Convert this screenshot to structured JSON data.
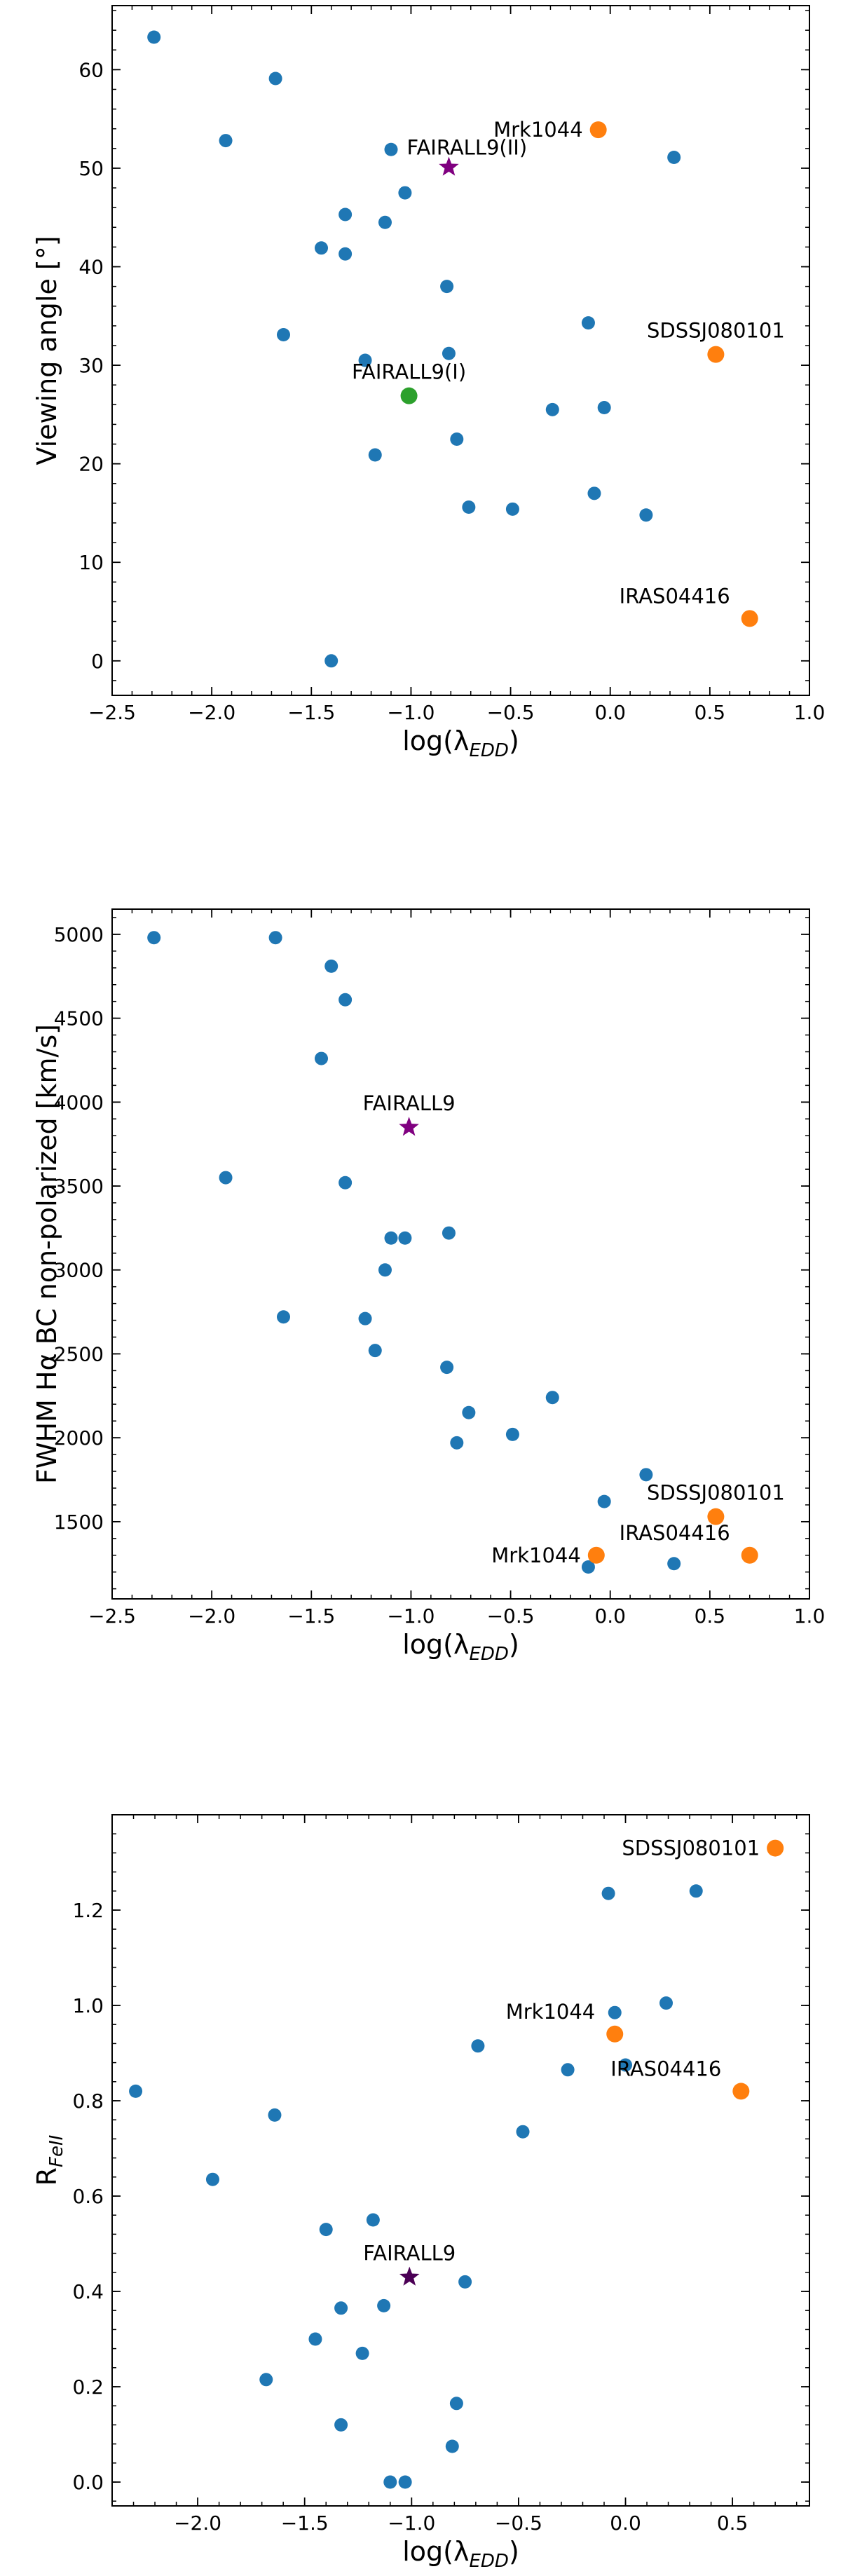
{
  "chart_data": [
    {
      "type": "scatter",
      "xlabel": "log(λ",
      "xlabel_sub": "EDD",
      "xlabel_close": ")",
      "ylabel": "Viewing angle [°]",
      "xlim": [
        -2.5,
        1.0
      ],
      "ylim": [
        -3.5,
        66.5
      ],
      "xticks": [
        -2.5,
        -2.0,
        -1.5,
        -1.0,
        -0.5,
        0.0,
        0.5,
        1.0
      ],
      "xtick_labels": [
        "−2.5",
        "−2.0",
        "−1.5",
        "−1.0",
        "−0.5",
        "0.0",
        "0.5",
        "1.0"
      ],
      "yticks": [
        0,
        10,
        20,
        30,
        40,
        50,
        60
      ],
      "ytick_labels": [
        "0",
        "10",
        "20",
        "30",
        "40",
        "50",
        "60"
      ],
      "minor_ticks": true,
      "grid": false,
      "sample": {
        "color": "#1f77b4",
        "points": [
          [
            -2.29,
            63.3
          ],
          [
            -1.93,
            52.8
          ],
          [
            -1.68,
            59.1
          ],
          [
            -1.64,
            33.1
          ],
          [
            -1.45,
            41.9
          ],
          [
            -1.4,
            0.0
          ],
          [
            -1.33,
            45.3
          ],
          [
            -1.33,
            41.3
          ],
          [
            -1.23,
            30.5
          ],
          [
            -1.18,
            20.9
          ],
          [
            -1.13,
            44.5
          ],
          [
            -1.1,
            51.9
          ],
          [
            -1.03,
            47.5
          ],
          [
            -0.82,
            38.0
          ],
          [
            -0.81,
            31.2
          ],
          [
            -0.77,
            22.5
          ],
          [
            -0.71,
            15.6
          ],
          [
            -0.49,
            15.4
          ],
          [
            -0.29,
            25.5
          ],
          [
            -0.11,
            34.3
          ],
          [
            -0.08,
            17.0
          ],
          [
            -0.03,
            25.7
          ],
          [
            0.18,
            14.8
          ],
          [
            0.32,
            51.1
          ]
        ]
      },
      "highlights": [
        {
          "label": "Mrk1044",
          "x": -0.06,
          "y": 53.9,
          "color": "#ff7f0e",
          "marker": "circle",
          "label_pos": "left"
        },
        {
          "label": "SDSSJ080101",
          "x": 0.53,
          "y": 31.1,
          "color": "#ff7f0e",
          "marker": "circle",
          "label_pos": "above"
        },
        {
          "label": "IRAS04416",
          "x": 0.7,
          "y": 4.3,
          "color": "#ff7f0e",
          "marker": "circle",
          "label_pos": "above-left"
        },
        {
          "label": "FAIRALL9(II)",
          "x": -0.81,
          "y": 50.1,
          "color": "#800080",
          "marker": "star",
          "label_pos": "above-right"
        },
        {
          "label": "FAIRALL9(I)",
          "x": -1.01,
          "y": 26.9,
          "color": "#2ca02c",
          "marker": "circle",
          "label_pos": "above"
        }
      ]
    },
    {
      "type": "scatter",
      "xlabel": "log(λ",
      "xlabel_sub": "EDD",
      "xlabel_close": ")",
      "ylabel": "FWHM Hα BC non-polarized [km/s]",
      "xlim": [
        -2.5,
        1.0
      ],
      "ylim": [
        1040,
        5150
      ],
      "xticks": [
        -2.5,
        -2.0,
        -1.5,
        -1.0,
        -0.5,
        0.0,
        0.5,
        1.0
      ],
      "xtick_labels": [
        "−2.5",
        "−2.0",
        "−1.5",
        "−1.0",
        "−0.5",
        "0.0",
        "0.5",
        "1.0"
      ],
      "yticks": [
        1500,
        2000,
        2500,
        3000,
        3500,
        4000,
        4500,
        5000
      ],
      "ytick_labels": [
        "1500",
        "2000",
        "2500",
        "3000",
        "3500",
        "4000",
        "4500",
        "5000"
      ],
      "minor_ticks": true,
      "grid": false,
      "sample": {
        "color": "#1f77b4",
        "points": [
          [
            -2.29,
            4980
          ],
          [
            -1.93,
            3550
          ],
          [
            -1.68,
            4980
          ],
          [
            -1.64,
            2720
          ],
          [
            -1.45,
            4260
          ],
          [
            -1.4,
            4810
          ],
          [
            -1.33,
            4610
          ],
          [
            -1.33,
            3520
          ],
          [
            -1.23,
            2710
          ],
          [
            -1.18,
            2520
          ],
          [
            -1.13,
            3000
          ],
          [
            -1.1,
            3190
          ],
          [
            -1.03,
            3190
          ],
          [
            -0.82,
            2420
          ],
          [
            -0.81,
            3220
          ],
          [
            -0.77,
            1970
          ],
          [
            -0.71,
            2150
          ],
          [
            -0.49,
            2020
          ],
          [
            -0.29,
            2240
          ],
          [
            -0.11,
            1230
          ],
          [
            -0.03,
            1620
          ],
          [
            0.18,
            1780
          ],
          [
            0.32,
            1250
          ]
        ]
      },
      "highlights": [
        {
          "label": "SDSSJ080101",
          "x": 0.53,
          "y": 1530,
          "color": "#ff7f0e",
          "marker": "circle",
          "label_pos": "above"
        },
        {
          "label": "Mrk1044",
          "x": -0.07,
          "y": 1300,
          "color": "#ff7f0e",
          "marker": "circle",
          "label_pos": "left"
        },
        {
          "label": "IRAS04416",
          "x": 0.7,
          "y": 1300,
          "color": "#ff7f0e",
          "marker": "circle",
          "label_pos": "above-left"
        },
        {
          "label": "FAIRALL9",
          "x": -1.01,
          "y": 3850,
          "color": "#800080",
          "marker": "star",
          "label_pos": "above"
        }
      ]
    },
    {
      "type": "scatter",
      "xlabel": "log(λ",
      "xlabel_sub": "EDD",
      "xlabel_close": ")",
      "ylabel": "R",
      "ylabel_sub": "FeII",
      "xlim": [
        -2.4,
        0.86
      ],
      "ylim": [
        -0.05,
        1.4
      ],
      "xticks": [
        -2.0,
        -1.5,
        -1.0,
        -0.5,
        0.0,
        0.5
      ],
      "xtick_labels": [
        "−2.0",
        "−1.5",
        "−1.0",
        "−0.5",
        "0.0",
        "0.5"
      ],
      "yticks": [
        0.0,
        0.2,
        0.4,
        0.6,
        0.8,
        1.0,
        1.2
      ],
      "ytick_labels": [
        "0.0",
        "0.2",
        "0.4",
        "0.6",
        "0.8",
        "1.0",
        "1.2"
      ],
      "minor_ticks": true,
      "grid": false,
      "sample": {
        "color": "#1f77b4",
        "points": [
          [
            -2.29,
            0.82
          ],
          [
            -1.93,
            0.635
          ],
          [
            -1.68,
            0.215
          ],
          [
            -1.64,
            0.77
          ],
          [
            -1.45,
            0.3
          ],
          [
            -1.4,
            0.53
          ],
          [
            -1.33,
            0.365
          ],
          [
            -1.33,
            0.12
          ],
          [
            -1.23,
            0.27
          ],
          [
            -1.18,
            0.55
          ],
          [
            -1.13,
            0.37
          ],
          [
            -1.1,
            0.0
          ],
          [
            -1.03,
            0.0
          ],
          [
            -0.81,
            0.075
          ],
          [
            -0.79,
            0.165
          ],
          [
            -0.75,
            0.42
          ],
          [
            -0.69,
            0.915
          ],
          [
            -0.48,
            0.735
          ],
          [
            -0.27,
            0.865
          ],
          [
            -0.08,
            1.235
          ],
          [
            -0.05,
            0.985
          ],
          [
            0.0,
            0.875
          ],
          [
            0.19,
            1.005
          ],
          [
            0.33,
            1.24
          ]
        ]
      },
      "highlights": [
        {
          "label": "SDSSJ080101",
          "x": 0.7,
          "y": 1.33,
          "color": "#ff7f0e",
          "marker": "circle",
          "label_pos": "left"
        },
        {
          "label": "Mrk1044",
          "x": -0.05,
          "y": 0.94,
          "color": "#ff7f0e",
          "marker": "circle",
          "label_pos": "above-left"
        },
        {
          "label": "IRAS04416",
          "x": 0.54,
          "y": 0.82,
          "color": "#ff7f0e",
          "marker": "circle",
          "label_pos": "above-left"
        },
        {
          "label": "FAIRALL9",
          "x": -1.01,
          "y": 0.43,
          "color": "#4b0055",
          "marker": "star",
          "label_pos": "above"
        }
      ]
    }
  ]
}
